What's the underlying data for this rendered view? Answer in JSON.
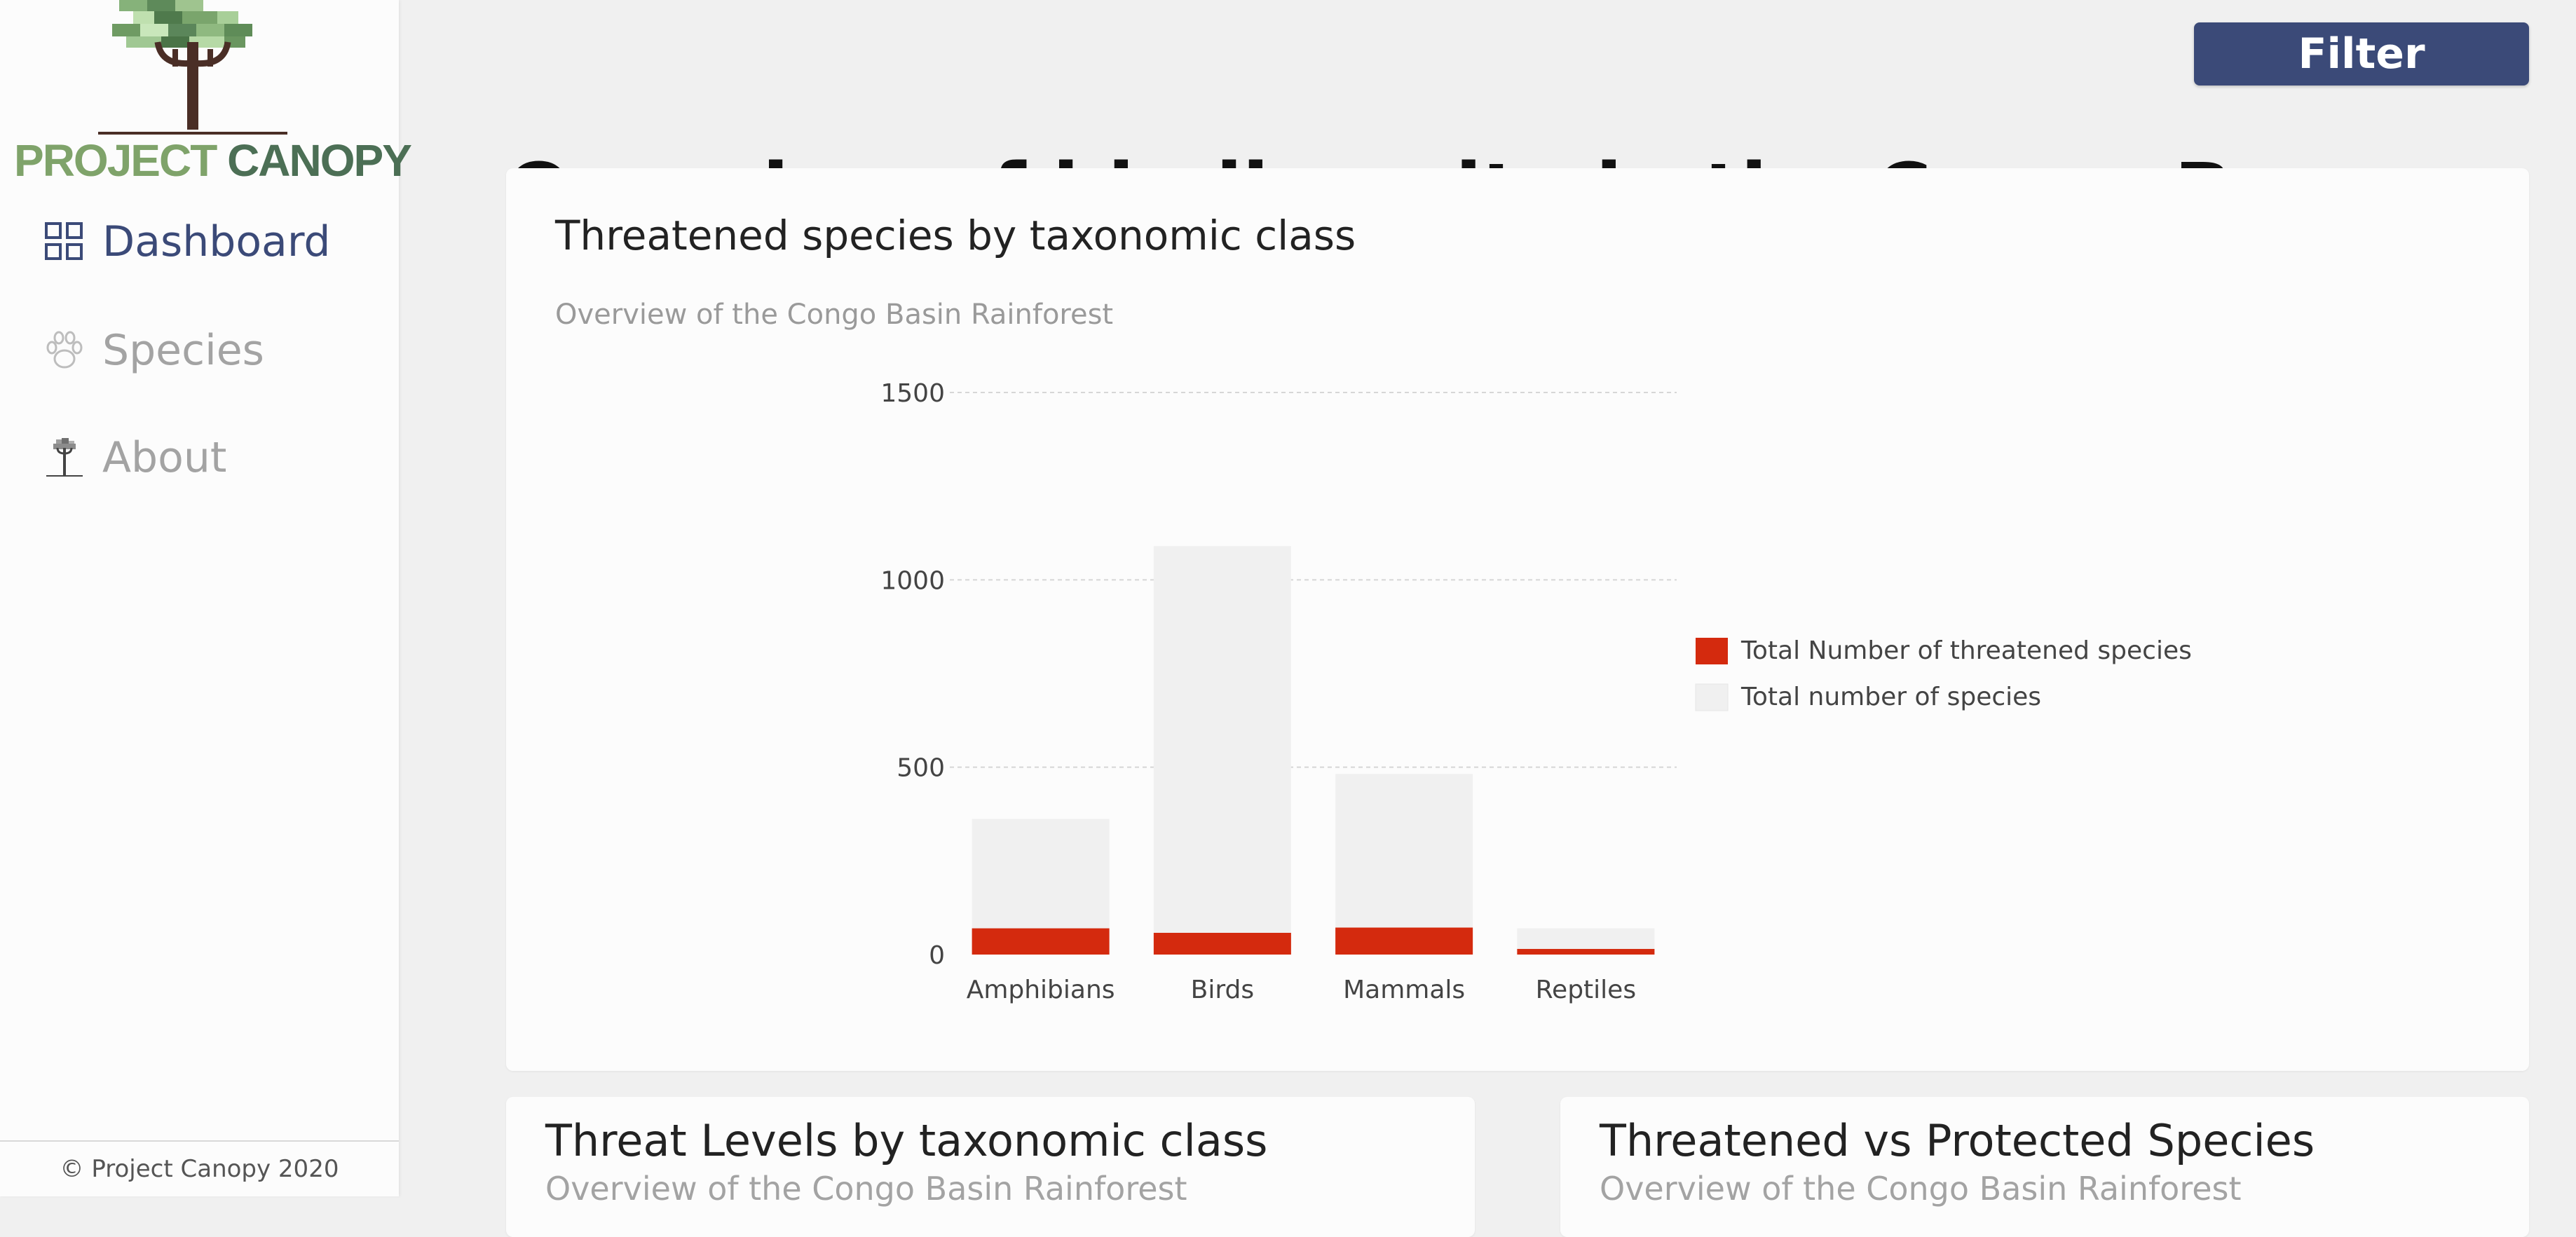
{
  "app": {
    "logo_word1": "PROJECT",
    "logo_word2": "CANOPY",
    "footer": "© Project Canopy 2020"
  },
  "sidebar": {
    "items": [
      {
        "label": "Dashboard",
        "icon": "dashboard-grid-icon",
        "active": true
      },
      {
        "label": "Species",
        "icon": "paw-icon",
        "active": false
      },
      {
        "label": "About",
        "icon": "tree-icon",
        "active": false
      }
    ]
  },
  "toolbar": {
    "filter_label": "Filter"
  },
  "page": {
    "title": "Overview of biodiversity in the Congo Basin Rainforest"
  },
  "main_card": {
    "title": "Threatened species by taxonomic class",
    "subtitle": "Overview of the Congo Basin Rainforest"
  },
  "chart_data": {
    "type": "bar",
    "stacked": false,
    "overlapping": true,
    "categories": [
      "Amphibians",
      "Birds",
      "Mammals",
      "Reptiles"
    ],
    "series": [
      {
        "name": "Total Number of threatened species",
        "values": [
          70,
          58,
          72,
          15
        ],
        "color": "#d42a0e"
      },
      {
        "name": "Total number of species",
        "values": [
          362,
          1090,
          482,
          70
        ],
        "color": "#f0f0f0"
      }
    ],
    "yticks": [
      0,
      500,
      1000,
      1500
    ],
    "ylim": [
      0,
      1500
    ],
    "grid": true,
    "legend_position": "right"
  },
  "cards": [
    {
      "title": "Threat Levels by taxonomic class",
      "subtitle": "Overview of the Congo Basin Rainforest"
    },
    {
      "title": "Threatened vs Protected Species",
      "subtitle": "Overview of the Congo Basin Rainforest"
    }
  ],
  "colors": {
    "accent": "#3b4a78",
    "threatened": "#d42a0e",
    "total": "#f0f0f0"
  }
}
